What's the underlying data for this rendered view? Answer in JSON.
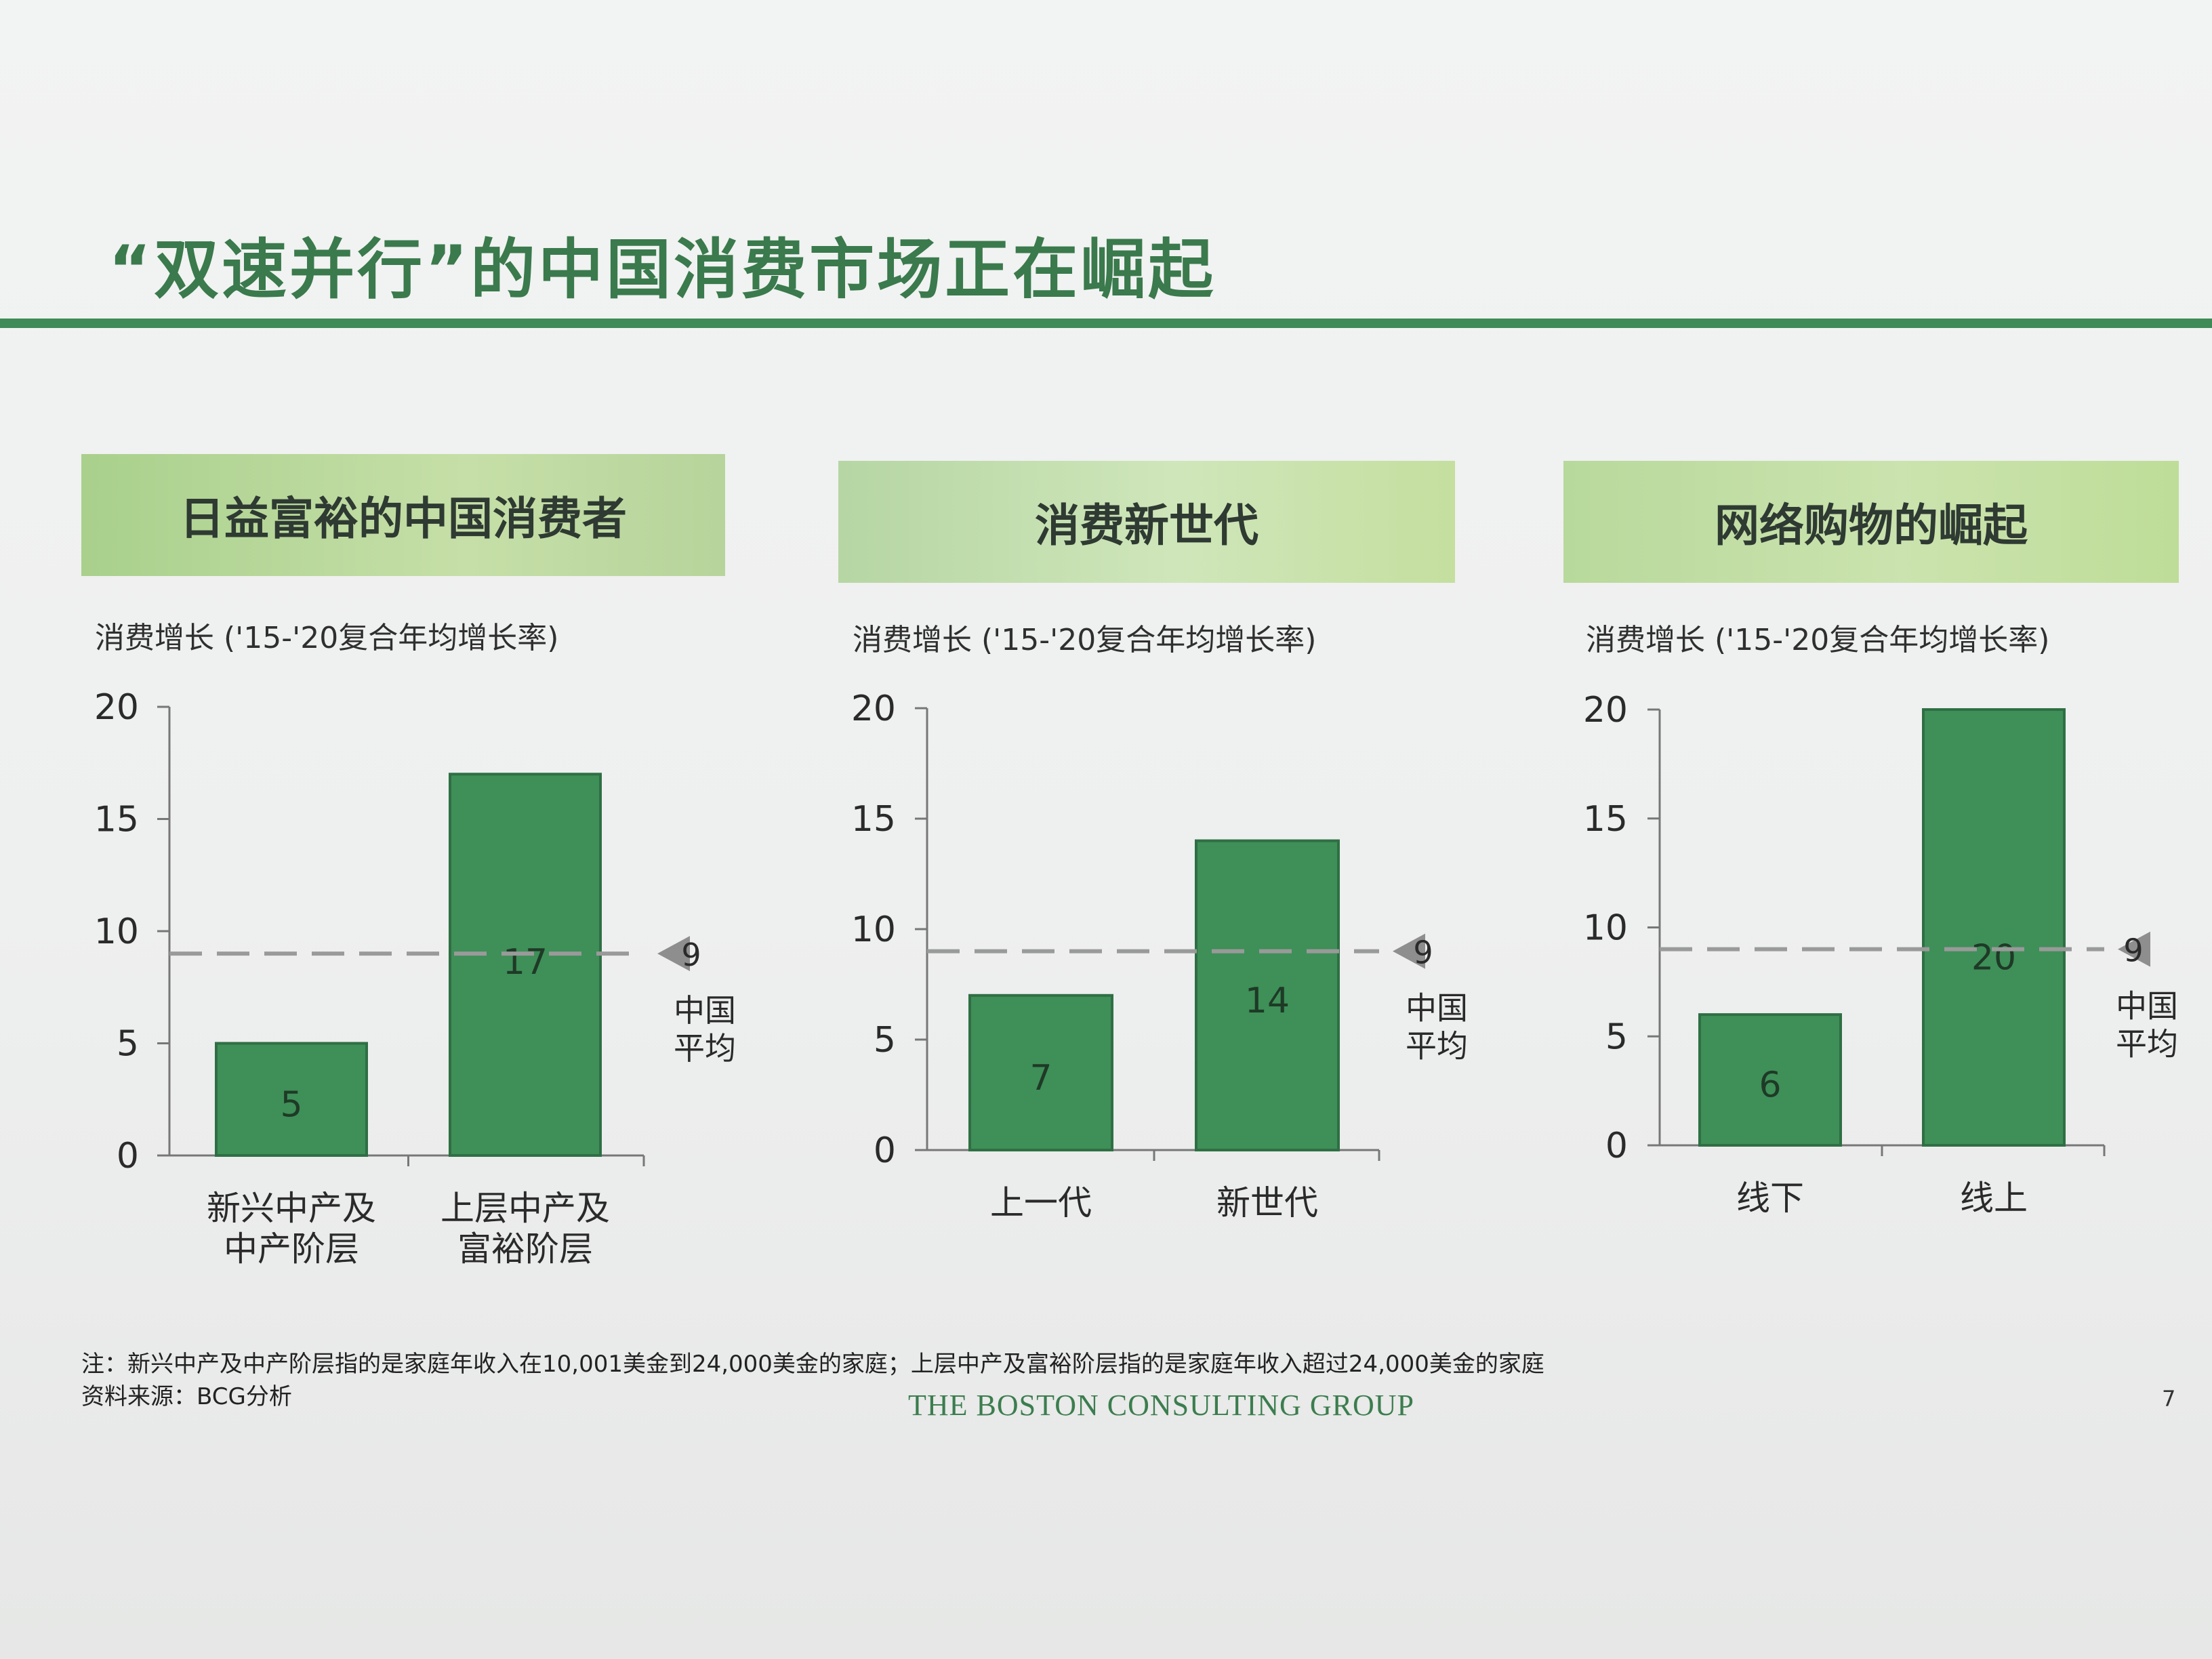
{
  "title": "“双速并行”的中国消费市场正在崛起",
  "panels": [
    {
      "header": "日益富裕的中国消费者",
      "subtitle": "消费增长 ('15-'20复合年均增长率)"
    },
    {
      "header": "消费新世代",
      "subtitle": "消费增长 ('15-'20复合年均增长率)"
    },
    {
      "header": "网络购物的崛起",
      "subtitle": "消费增长 ('15-'20复合年均增长率)"
    }
  ],
  "chart_data": [
    {
      "type": "bar",
      "title": "日益富裕的中国消费者",
      "ylabel": "消费增长 ('15-'20复合年均增长率)",
      "categories": [
        [
          "新兴中产及",
          "中产阶层"
        ],
        [
          "上层中产及",
          "富裕阶层"
        ]
      ],
      "values": [
        5,
        17
      ],
      "ylim": [
        0,
        20
      ],
      "yticks": [
        0,
        5,
        10,
        15,
        20
      ],
      "reference": {
        "value": 9,
        "label": [
          "中国",
          "平均"
        ]
      }
    },
    {
      "type": "bar",
      "title": "消费新世代",
      "ylabel": "消费增长 ('15-'20复合年均增长率)",
      "categories": [
        [
          "上一代"
        ],
        [
          "新世代"
        ]
      ],
      "values": [
        7,
        14
      ],
      "ylim": [
        0,
        20
      ],
      "yticks": [
        0,
        5,
        10,
        15,
        20
      ],
      "reference": {
        "value": 9,
        "label": [
          "中国",
          "平均"
        ]
      }
    },
    {
      "type": "bar",
      "title": "网络购物的崛起",
      "ylabel": "消费增长 ('15-'20复合年均增长率)",
      "categories": [
        [
          "线下"
        ],
        [
          "线上"
        ]
      ],
      "values": [
        6,
        20
      ],
      "ylim": [
        0,
        20
      ],
      "yticks": [
        0,
        5,
        10,
        15,
        20
      ],
      "reference": {
        "value": 9,
        "label": [
          "中国",
          "平均"
        ]
      }
    }
  ],
  "colors": {
    "bar": "#3f8f58",
    "bar_edge": "#2f6f44",
    "reference_line": "#9a9a9a",
    "accent": "#3a7a4c"
  },
  "footer": {
    "note": "注：新兴中产及中产阶层指的是家庭年收入在10,001美金到24,000美金的家庭；上层中产及富裕阶层指的是家庭年收入超过24,000美金的家庭",
    "source": "资料来源：BCG分析",
    "brand": "THE BOSTON CONSULTING GROUP",
    "page_number": "7"
  }
}
